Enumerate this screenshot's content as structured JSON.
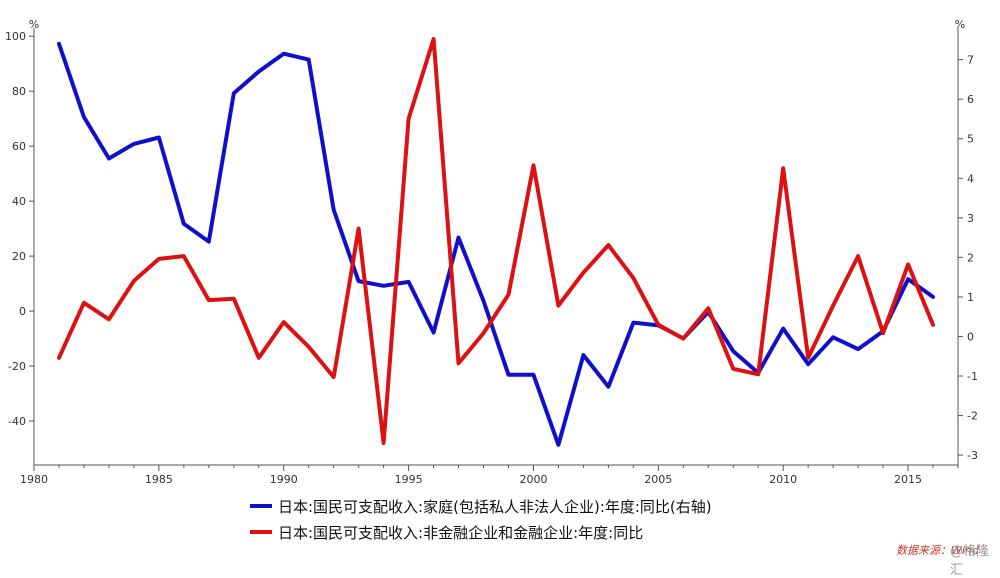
{
  "chart_data": {
    "type": "line",
    "left_unit": "%",
    "right_unit": "%",
    "x_ticks": [
      1980,
      1985,
      1990,
      1995,
      2000,
      2005,
      2010,
      2015
    ],
    "left_ticks": [
      100,
      80,
      60,
      40,
      20,
      0,
      -20,
      -40
    ],
    "right_ticks": [
      7,
      6,
      5,
      4,
      3,
      2,
      1,
      0,
      -1,
      -2,
      -3
    ],
    "xlim": [
      1980,
      2017
    ],
    "ylim_left": [
      -56,
      103
    ],
    "ylim_right": [
      -3.25,
      7.8
    ],
    "x": [
      1981,
      1982,
      1983,
      1984,
      1985,
      1986,
      1987,
      1988,
      1989,
      1990,
      1991,
      1992,
      1993,
      1994,
      1995,
      1996,
      1997,
      1998,
      1999,
      2000,
      2001,
      2002,
      2003,
      2004,
      2005,
      2006,
      2007,
      2008,
      2009,
      2010,
      2011,
      2012,
      2013,
      2014,
      2015,
      2016
    ],
    "series": [
      {
        "name": "日本:国民可支配收入:家庭(包括私人非法人企业):年度:同比(右轴)",
        "axis": "right",
        "color": "#1010cc",
        "values": [
          7.4,
          5.55,
          4.5,
          4.87,
          5.03,
          2.85,
          2.4,
          6.15,
          6.7,
          7.15,
          7.0,
          3.2,
          1.4,
          1.28,
          1.38,
          0.1,
          2.5,
          0.9,
          -0.97,
          -0.97,
          -2.74,
          -0.47,
          -1.27,
          0.35,
          0.28,
          -0.05,
          0.62,
          -0.37,
          -0.92,
          0.2,
          -0.7,
          -0.02,
          -0.32,
          0.13,
          1.45,
          1.0
        ]
      },
      {
        "name": "日本:国民可支配收入:非金融企业和金融企业:年度:同比",
        "axis": "left",
        "color": "#dd1111",
        "values": [
          -17,
          3,
          -3,
          11,
          19,
          20,
          4,
          4.5,
          -17,
          -4,
          -13,
          -24,
          30,
          -48,
          70,
          99,
          -19,
          -8,
          6,
          53,
          2,
          14,
          24,
          12,
          -5,
          -10,
          1,
          -21,
          -23,
          52,
          -17,
          2,
          20,
          -8,
          17,
          -5
        ]
      }
    ]
  },
  "legend": [
    {
      "label": "日本:国民可支配收入:家庭(包括私人非法人企业):年度:同比(右轴)",
      "color": "#1010cc"
    },
    {
      "label": "日本:国民可支配收入:非金融企业和金融企业:年度:同比",
      "color": "#dd1111"
    }
  ],
  "source": "数据来源：Wind",
  "watermark": "@格隆汇"
}
